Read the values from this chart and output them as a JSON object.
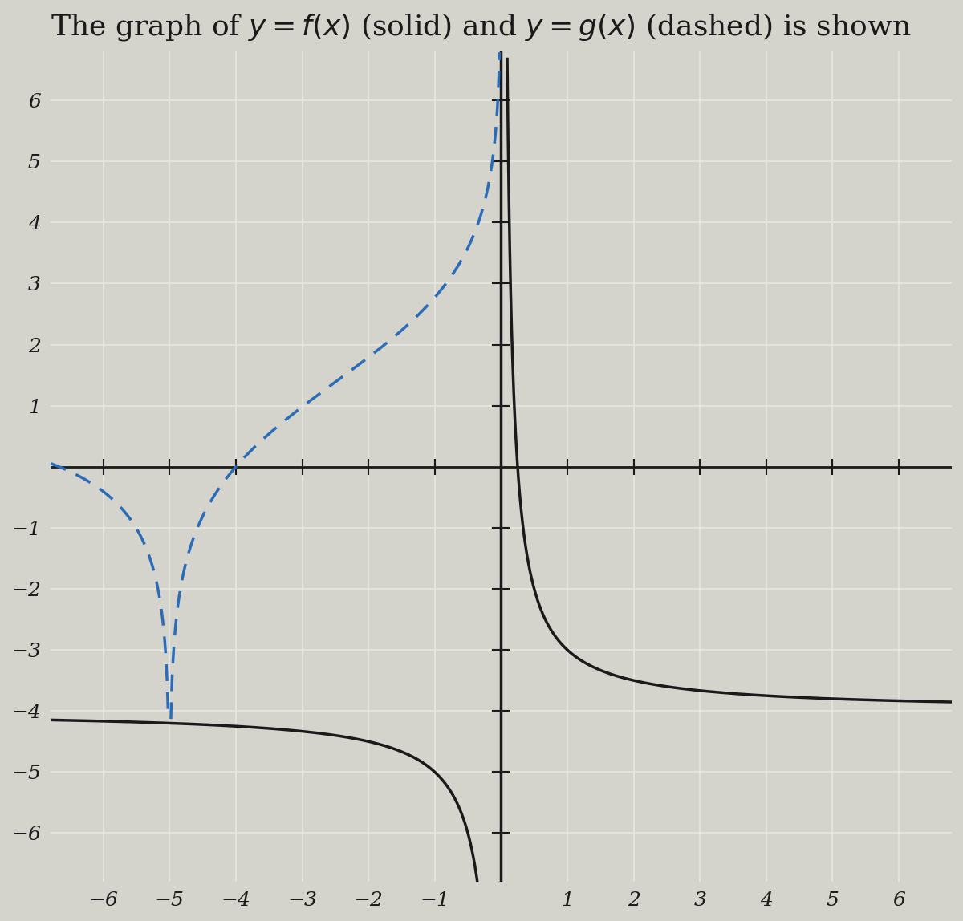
{
  "title": "The graph of $y = f(x)$ (solid) and $y = g(x)$ (dashed) is shown",
  "xlim": [
    -6.8,
    6.8
  ],
  "ylim": [
    -6.8,
    6.8
  ],
  "xticks": [
    -6,
    -5,
    -4,
    -3,
    -2,
    -1,
    1,
    2,
    3,
    4,
    5,
    6
  ],
  "yticks": [
    -6,
    -5,
    -4,
    -3,
    -2,
    -1,
    1,
    2,
    3,
    4,
    5,
    6
  ],
  "f_color": "#1a1a1a",
  "g_color": "#2b6cb8",
  "background_color": "#d4d4cc",
  "grid_color": "#e8e8e2",
  "axis_color": "#1a1a1a",
  "title_fontsize": 26,
  "tick_fontsize": 18,
  "g_asymptote": -5,
  "g_scale": 4
}
